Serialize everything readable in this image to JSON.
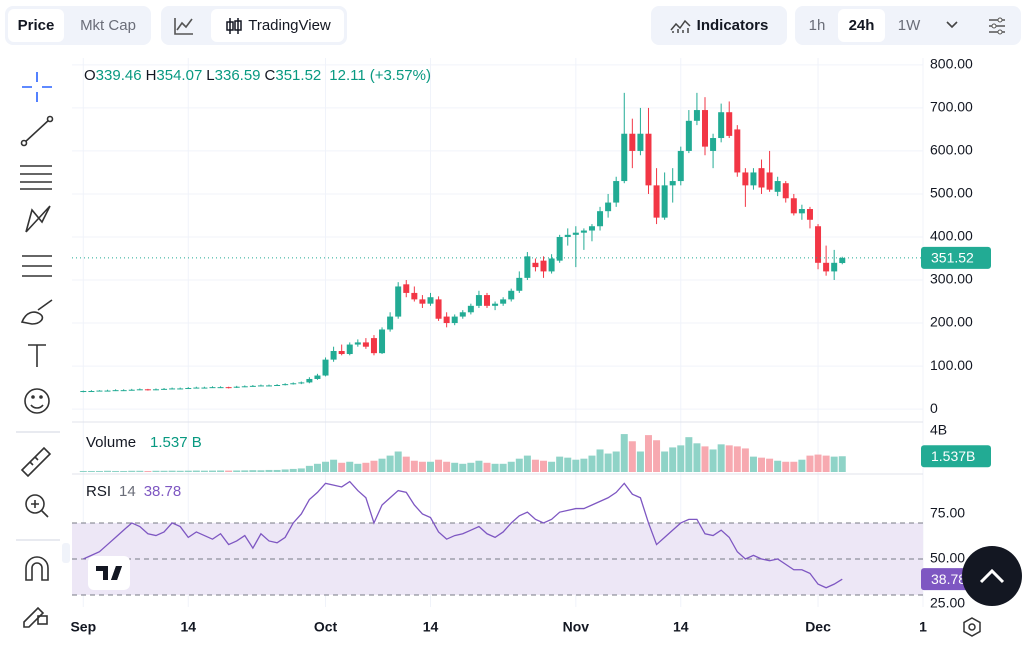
{
  "toolbar": {
    "tabs": [
      "Price",
      "Mkt Cap"
    ],
    "chart_style": "TradingView",
    "indicators": "Indicators",
    "intervals": [
      "1h",
      "24h",
      "1W"
    ]
  },
  "chart_data": [
    {
      "type": "candlestick",
      "ohlc_labels": [
        "O",
        "H",
        "L",
        "C"
      ],
      "change": 12.11,
      "change_percent": {
        "value": 3.57,
        "label": "(+3.57%)"
      },
      "up_color": "#22ab94",
      "down_color": "#f23645",
      "grid": true,
      "x": [
        0,
        1,
        2,
        3,
        4,
        5,
        6,
        7,
        8,
        9,
        10,
        11,
        12,
        13,
        14,
        15,
        16,
        17,
        18,
        19,
        20,
        21,
        22,
        23,
        24,
        25,
        26,
        27,
        28,
        29,
        30,
        31,
        32,
        33,
        34,
        35,
        36,
        37,
        38,
        39,
        40,
        41,
        42,
        43,
        44,
        45,
        46,
        47,
        48,
        49,
        50,
        51,
        52,
        53,
        54,
        55,
        56,
        57,
        58,
        59,
        60,
        61,
        62,
        63,
        64,
        65,
        66,
        67,
        68,
        69,
        70,
        71,
        72,
        73,
        74,
        75,
        76,
        77,
        78,
        79,
        80,
        81,
        82,
        83,
        84,
        85,
        86,
        87,
        88,
        89,
        90,
        91,
        92,
        93,
        94
      ],
      "open": [
        41,
        42,
        42,
        43,
        43,
        44,
        44,
        45,
        46,
        45,
        46,
        47,
        48,
        48,
        49,
        50,
        50,
        51,
        51,
        50,
        52,
        53,
        54,
        55,
        55,
        56,
        58,
        60,
        62,
        70,
        78,
        115,
        135,
        128,
        150,
        155,
        165,
        130,
        185,
        215,
        290,
        270,
        255,
        245,
        255,
        215,
        200,
        215,
        225,
        240,
        265,
        240,
        245,
        255,
        275,
        305,
        340,
        345,
        320,
        345,
        400,
        405,
        410,
        415,
        425,
        460,
        480,
        530,
        640,
        600,
        640,
        520,
        445,
        520,
        530,
        600,
        670,
        695,
        600,
        630,
        690,
        650,
        550,
        520,
        560,
        550,
        505,
        525,
        490,
        455,
        465,
        425,
        340,
        320,
        339.46
      ],
      "high": [
        43,
        44,
        44,
        45,
        46,
        46,
        47,
        48,
        47,
        48,
        49,
        50,
        50,
        51,
        52,
        52,
        53,
        53,
        52,
        54,
        55,
        56,
        57,
        57,
        58,
        60,
        62,
        64,
        74,
        82,
        120,
        145,
        150,
        155,
        162,
        165,
        172,
        190,
        225,
        295,
        300,
        285,
        265,
        270,
        262,
        225,
        220,
        230,
        245,
        275,
        270,
        250,
        260,
        280,
        320,
        365,
        350,
        355,
        360,
        405,
        420,
        425,
        420,
        430,
        470,
        500,
        540,
        735,
        675,
        700,
        700,
        560,
        550,
        560,
        610,
        695,
        735,
        725,
        640,
        710,
        715,
        660,
        560,
        560,
        580,
        600,
        540,
        530,
        500,
        475,
        470,
        430,
        380,
        370,
        354.07
      ],
      "low": [
        39,
        40,
        41,
        41,
        42,
        42,
        43,
        44,
        43,
        44,
        45,
        46,
        46,
        47,
        48,
        48,
        49,
        49,
        48,
        49,
        51,
        52,
        53,
        53,
        54,
        55,
        57,
        58,
        60,
        68,
        76,
        110,
        125,
        125,
        145,
        140,
        125,
        128,
        180,
        210,
        260,
        250,
        235,
        240,
        205,
        190,
        195,
        210,
        220,
        235,
        235,
        230,
        240,
        250,
        270,
        300,
        320,
        305,
        315,
        340,
        380,
        330,
        370,
        390,
        415,
        445,
        470,
        525,
        560,
        590,
        500,
        430,
        440,
        480,
        520,
        595,
        660,
        590,
        560,
        620,
        630,
        540,
        470,
        510,
        500,
        505,
        495,
        480,
        450,
        440,
        420,
        325,
        310,
        300,
        336.59
      ],
      "close": [
        42,
        42,
        43,
        43,
        44,
        44,
        45,
        46,
        45,
        46,
        47,
        48,
        48,
        49,
        50,
        50,
        51,
        51,
        50,
        52,
        53,
        54,
        55,
        55,
        56,
        58,
        60,
        62,
        70,
        78,
        115,
        135,
        128,
        150,
        155,
        145,
        130,
        185,
        215,
        285,
        270,
        255,
        245,
        260,
        210,
        200,
        215,
        225,
        240,
        265,
        240,
        245,
        255,
        275,
        305,
        355,
        330,
        320,
        350,
        400,
        405,
        410,
        415,
        425,
        460,
        480,
        530,
        640,
        600,
        640,
        520,
        445,
        520,
        530,
        600,
        670,
        695,
        610,
        630,
        690,
        635,
        550,
        520,
        550,
        515,
        510,
        530,
        490,
        455,
        465,
        440,
        340,
        320,
        340,
        351.52
      ],
      "xlim": [
        -1.4,
        104
      ],
      "xticks": [
        {
          "value": 0,
          "label": "Sep"
        },
        {
          "value": 13,
          "label": "14"
        },
        {
          "value": 30,
          "label": "Oct"
        },
        {
          "value": 43,
          "label": "14"
        },
        {
          "value": 61,
          "label": "Nov"
        },
        {
          "value": 74,
          "label": "14"
        },
        {
          "value": 91,
          "label": "Dec"
        },
        {
          "value": 104,
          "label": "1"
        }
      ],
      "ylim": [
        -30,
        816
      ],
      "yticks": [
        0,
        {
          "value": 100,
          "label": "100.00"
        },
        {
          "value": 200,
          "label": "200.00"
        },
        {
          "value": 300,
          "label": "300.00"
        },
        {
          "value": 400,
          "label": "400.00"
        },
        {
          "value": 500,
          "label": "500.00"
        },
        {
          "value": 600,
          "label": "600.00"
        },
        {
          "value": 700,
          "label": "700.00"
        },
        {
          "value": 800,
          "label": "800.00"
        }
      ]
    },
    {
      "type": "bar",
      "title": "Volume",
      "last_value_label": "1.537 B",
      "last_value_tag": "1.537B",
      "up_color": "#8fd3c7",
      "down_color": "#f7a9b0",
      "tag_color": "#22ab94",
      "values": [
        0.1,
        0.1,
        0.1,
        0.12,
        0.1,
        0.1,
        0.12,
        0.12,
        0.1,
        0.12,
        0.12,
        0.13,
        0.12,
        0.13,
        0.14,
        0.13,
        0.14,
        0.15,
        0.14,
        0.15,
        0.16,
        0.18,
        0.17,
        0.2,
        0.2,
        0.25,
        0.3,
        0.35,
        0.6,
        0.8,
        1.0,
        1.2,
        0.9,
        1.0,
        0.8,
        0.9,
        1.1,
        1.3,
        1.6,
        2.0,
        1.5,
        1.1,
        1.0,
        1.0,
        1.2,
        1.0,
        0.9,
        0.8,
        0.9,
        1.1,
        0.9,
        0.8,
        0.8,
        1.0,
        1.3,
        1.6,
        1.2,
        1.1,
        1.0,
        1.5,
        1.4,
        1.2,
        1.3,
        1.6,
        2.2,
        1.8,
        2.0,
        3.7,
        3.0,
        2.0,
        3.6,
        3.1,
        2.0,
        2.4,
        2.6,
        3.4,
        2.8,
        2.5,
        2.2,
        2.7,
        2.6,
        2.5,
        2.3,
        1.5,
        1.4,
        1.3,
        1.1,
        1.0,
        1.0,
        1.2,
        1.6,
        1.7,
        1.6,
        1.5,
        1.537
      ],
      "ylim": [
        0,
        4.88
      ],
      "yticks": [
        {
          "value": 4,
          "label": "4B"
        }
      ]
    },
    {
      "type": "line",
      "title": "RSI",
      "length": 14,
      "color": "#7e57c2",
      "levels": [
        70,
        50,
        30
      ],
      "band_color": "#ede7f6",
      "values": [
        50,
        52,
        54,
        58,
        62,
        66,
        70,
        68,
        64,
        63,
        65,
        70,
        68,
        62,
        65,
        63,
        61,
        64,
        58,
        60,
        63,
        56,
        64,
        60,
        59,
        62,
        70,
        75,
        83,
        87,
        92,
        91,
        90,
        93,
        88,
        84,
        70,
        80,
        84,
        88,
        87,
        80,
        75,
        73,
        65,
        61,
        63,
        64,
        66,
        68,
        64,
        62,
        65,
        70,
        74,
        76,
        72,
        70,
        72,
        76,
        77,
        78,
        78,
        80,
        82,
        84,
        87,
        92,
        86,
        84,
        70,
        58,
        62,
        66,
        70,
        72,
        72,
        64,
        63,
        66,
        62,
        54,
        50,
        52,
        50,
        49,
        50,
        47,
        44,
        44,
        42,
        36,
        34,
        36,
        38.78
      ],
      "ylim": [
        23.3,
        96.1
      ],
      "yticks": [
        {
          "value": 25,
          "label": "25.00"
        },
        {
          "value": 50,
          "label": "50.00"
        },
        {
          "value": 75,
          "label": "75.00"
        }
      ]
    }
  ]
}
